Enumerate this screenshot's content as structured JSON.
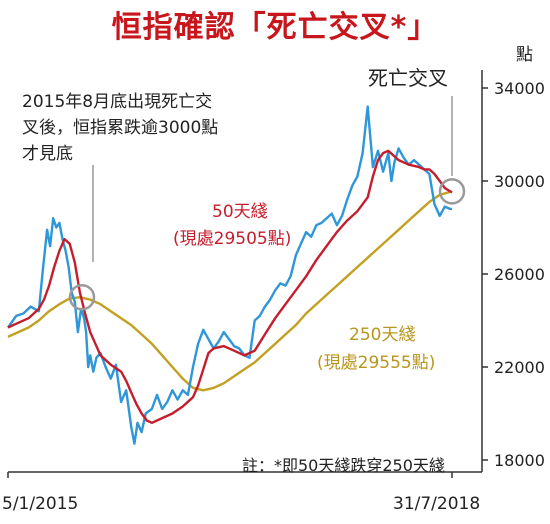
{
  "title": "恒指確認「死亡交叉*」",
  "chart_data": {
    "type": "line",
    "ylabel": "點",
    "ylim": [
      16500,
      35200
    ],
    "yticks": [
      18000,
      22000,
      26000,
      30000,
      34000
    ],
    "ytick_labels": [
      "18000",
      "22000",
      "26000",
      "30000",
      "34000"
    ],
    "x_start_label": "5/1/2015",
    "x_end_label": "31/7/2018",
    "x_range_months": [
      0,
      43.2
    ],
    "grid": false,
    "series": [
      {
        "name": "恒指",
        "color": "#2f96d8",
        "x": [
          0,
          0.8,
          1.5,
          2.2,
          3.0,
          3.4,
          3.8,
          4.1,
          4.4,
          4.7,
          5.0,
          5.3,
          5.6,
          5.9,
          6.2,
          6.5,
          6.8,
          7.1,
          7.4,
          7.6,
          7.8,
          8.0,
          8.3,
          8.6,
          9.0,
          9.5,
          10.0,
          10.5,
          11.0,
          11.5,
          12.0,
          12.3,
          12.6,
          13.0,
          13.4,
          14.0,
          14.5,
          15.0,
          15.5,
          16.0,
          16.5,
          17.0,
          17.5,
          18.0,
          18.5,
          19.0,
          19.5,
          20.0,
          20.5,
          21.0,
          21.5,
          22.0,
          22.5,
          23.0,
          23.5,
          24.0,
          24.5,
          25.0,
          25.5,
          26.0,
          26.5,
          27.0,
          27.5,
          28.0,
          28.5,
          29.0,
          29.5,
          30.0,
          30.5,
          31.0,
          31.5,
          32.0,
          32.5,
          33.0,
          33.5,
          34.0,
          34.5,
          35.0,
          35.5,
          36.0,
          36.5,
          37.0,
          37.3,
          37.6,
          38.0,
          38.5,
          39.0,
          39.5,
          40.0,
          40.5,
          41.0,
          41.5,
          42.0,
          42.5,
          43.0,
          43.2
        ],
        "values": [
          23700,
          24200,
          24300,
          24600,
          24400,
          26200,
          27900,
          27200,
          28400,
          28000,
          28200,
          27500,
          27000,
          26300,
          25200,
          24800,
          23500,
          24500,
          24100,
          23500,
          22000,
          22500,
          21800,
          22400,
          22600,
          22000,
          21500,
          22100,
          20500,
          21000,
          19400,
          18700,
          19600,
          19200,
          20000,
          20200,
          20800,
          20200,
          20500,
          21000,
          20600,
          21000,
          20800,
          22000,
          23000,
          23600,
          23200,
          22800,
          23100,
          23500,
          23200,
          22900,
          22800,
          22500,
          22400,
          24000,
          24200,
          24600,
          24900,
          25300,
          25600,
          25500,
          25900,
          26800,
          27300,
          27800,
          27600,
          28100,
          28200,
          28400,
          28600,
          28100,
          28500,
          29200,
          29800,
          30200,
          31200,
          33200,
          30600,
          31300,
          30400,
          31200,
          30000,
          30800,
          31400,
          31000,
          30700,
          30900,
          30700,
          30500,
          30300,
          29000,
          28500,
          28900,
          28800,
          28800
        ]
      },
      {
        "name": "50天綫",
        "color": "#c41e2d",
        "x": [
          0,
          1,
          2,
          3,
          3.5,
          4,
          4.5,
          5,
          5.5,
          6,
          6.5,
          7,
          7.5,
          8,
          8.5,
          9,
          10,
          11,
          11.5,
          12,
          12.5,
          13,
          13.5,
          14,
          15,
          16,
          17,
          18,
          18.5,
          19,
          19.5,
          20,
          21,
          22,
          23,
          24,
          25,
          26,
          27,
          28,
          29,
          30,
          31,
          32,
          33,
          34,
          35,
          35.5,
          36,
          36.5,
          37,
          37.5,
          38,
          39,
          40,
          40.5,
          41,
          41.5,
          42,
          42.5,
          43.2
        ],
        "values": [
          23700,
          23900,
          24100,
          24500,
          24900,
          25500,
          26300,
          27000,
          27500,
          27300,
          26500,
          25200,
          24300,
          23500,
          23000,
          22500,
          22100,
          21800,
          21400,
          20900,
          20400,
          20000,
          19700,
          19600,
          19800,
          20000,
          20300,
          20700,
          21200,
          21900,
          22600,
          22800,
          22900,
          22700,
          22500,
          22700,
          23400,
          24100,
          24700,
          25300,
          25900,
          26600,
          27200,
          27800,
          28300,
          28700,
          29300,
          30200,
          30900,
          31200,
          31300,
          31100,
          30900,
          30700,
          30600,
          30500,
          30500,
          30300,
          30000,
          29700,
          29505
        ]
      },
      {
        "name": "250天綫",
        "color": "#c2a021",
        "x": [
          0,
          1,
          2,
          3,
          4,
          5,
          6,
          7,
          8,
          9,
          10,
          11,
          12,
          13,
          14,
          15,
          16,
          17,
          18,
          19,
          20,
          21,
          22,
          23,
          24,
          25,
          26,
          27,
          28,
          29,
          30,
          31,
          32,
          33,
          34,
          35,
          36,
          37,
          38,
          39,
          40,
          41,
          42,
          43.2
        ],
        "values": [
          23300,
          23500,
          23700,
          24000,
          24400,
          24700,
          24950,
          25000,
          24900,
          24700,
          24400,
          24100,
          23800,
          23400,
          23000,
          22500,
          22000,
          21500,
          21100,
          21000,
          21100,
          21300,
          21600,
          21900,
          22200,
          22600,
          23000,
          23400,
          23800,
          24300,
          24700,
          25100,
          25500,
          25900,
          26300,
          26700,
          27100,
          27500,
          27900,
          28300,
          28700,
          29100,
          29400,
          29555
        ]
      }
    ],
    "annotations": {
      "left_note": [
        "2015年8月底出現死亡交",
        "叉後，恒指累跌逾3000點",
        "才見底"
      ],
      "right_note": "死亡交叉",
      "ma50_label": "50天綫",
      "ma50_value": "(現處29505點)",
      "ma250_label": "250天綫",
      "ma250_value": "(現處29555點)",
      "footnote": "註：*即50天綫跌穿250天綫"
    },
    "cross_markers": [
      {
        "x": 7.2,
        "y": 25000
      },
      {
        "x": 43.2,
        "y": 29555
      }
    ],
    "colors": {
      "title": "#c8161d",
      "hsi": "#2f96d8",
      "ma50": "#c41e2d",
      "ma250": "#c2a021",
      "marker": "#999999"
    }
  }
}
